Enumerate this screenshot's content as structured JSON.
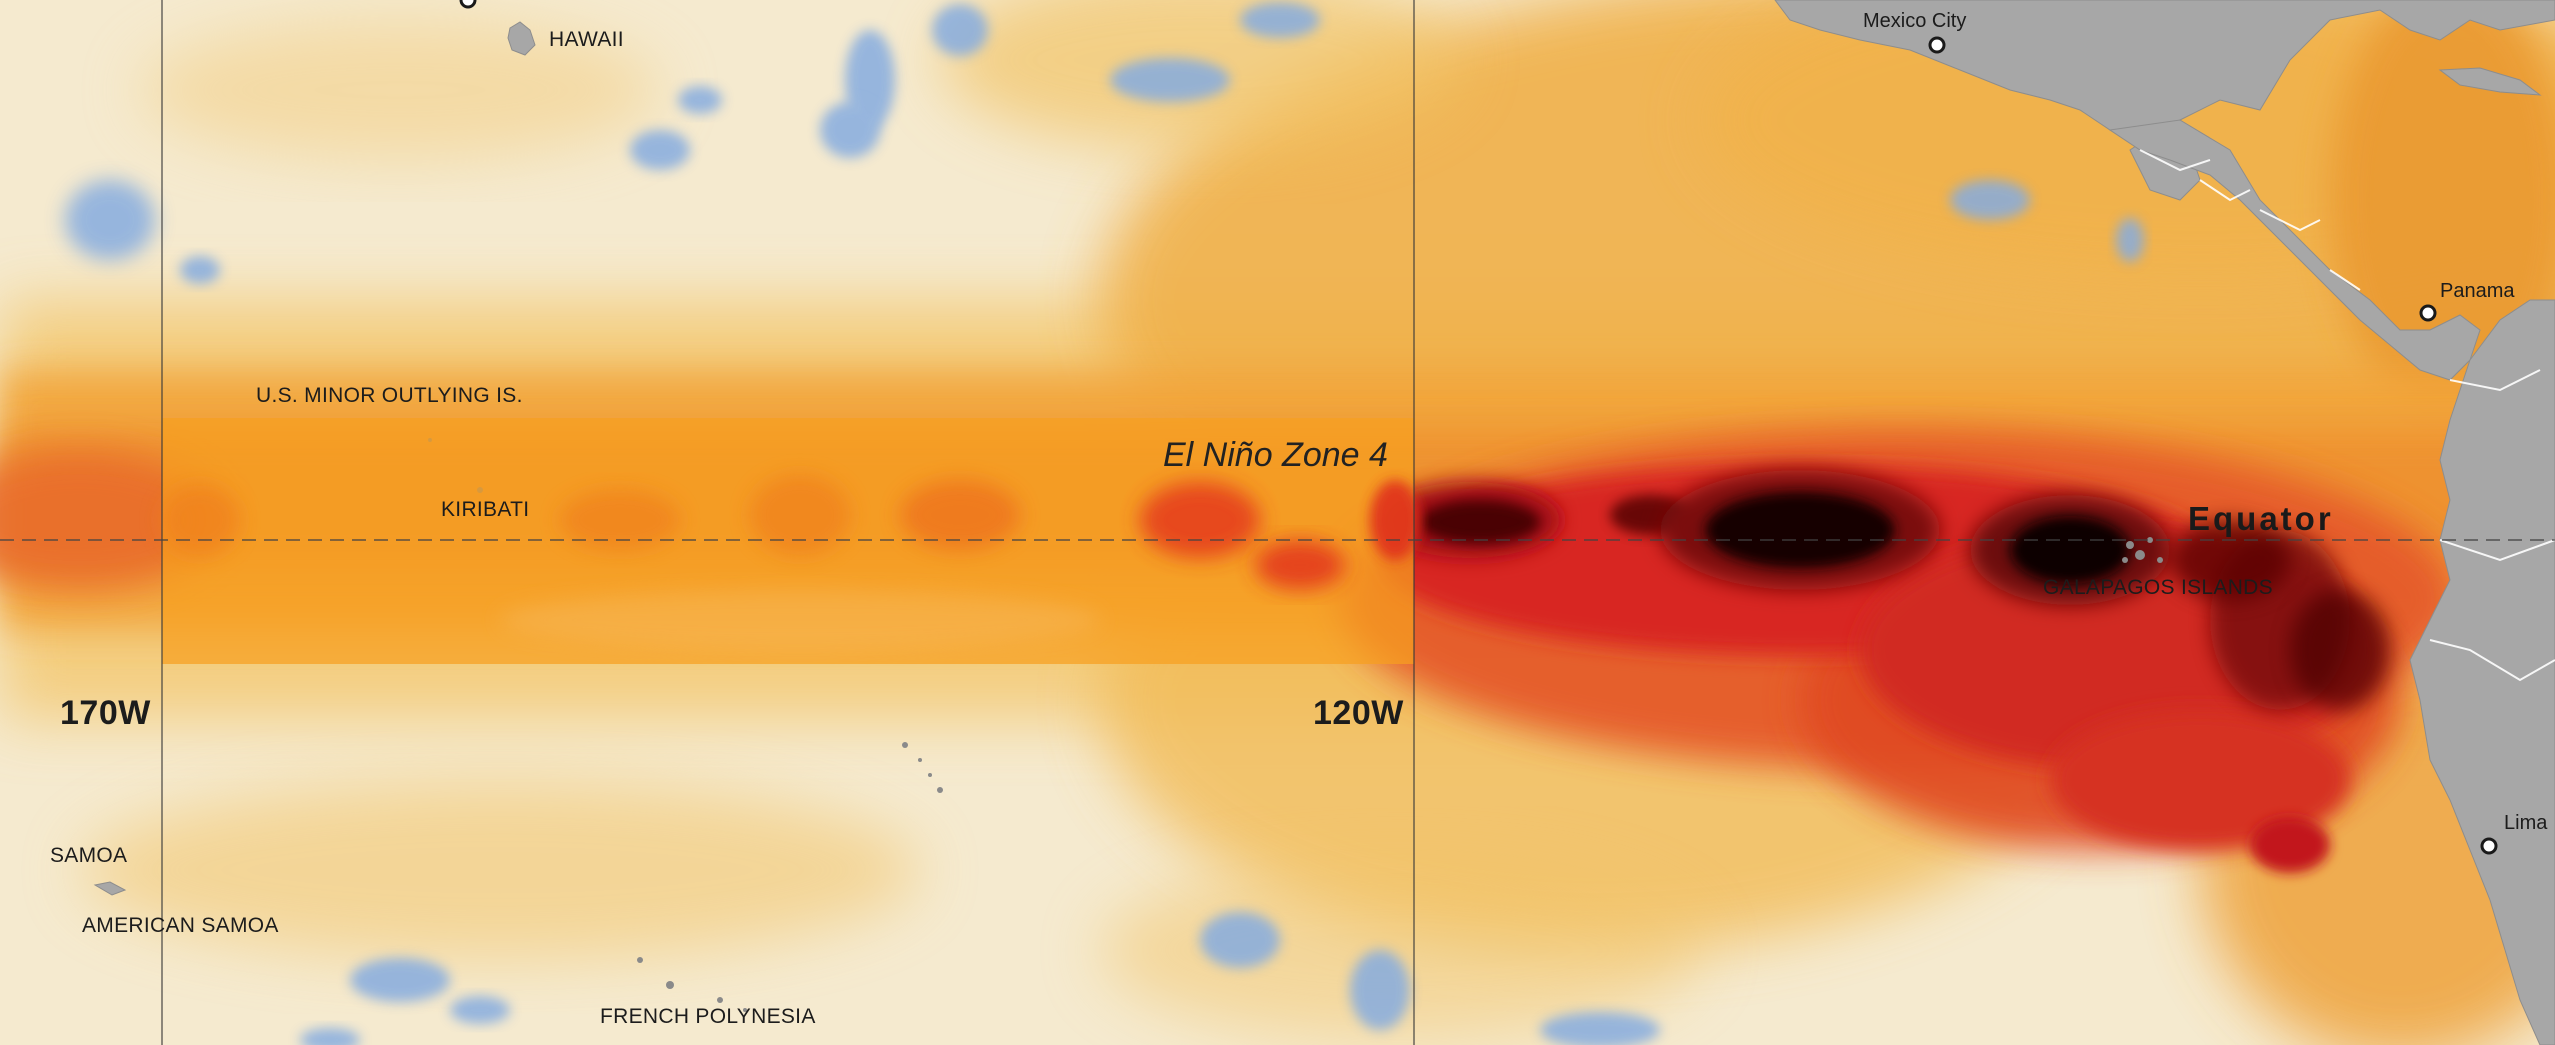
{
  "labels": {
    "hawaii": "HAWAII",
    "us_minor": "U.S. MINOR OUTLYING IS.",
    "kiribati": "KIRIBATI",
    "samoa": "SAMOA",
    "american_samoa": "AMERICAN SAMOA",
    "french_polynesia": "FRENCH POLYNESIA",
    "galapagos": "GALAPAGOS ISLANDS",
    "mexico_city": "Mexico City",
    "panama": "Panama",
    "lima": "Lima",
    "equator": "Equator",
    "zone": "El Niño Zone 4",
    "lon_170w": "170W",
    "lon_120w": "120W"
  },
  "colors": {
    "cool_anomaly": "#7ea7dc",
    "neutral": "#f4ecd6",
    "warm_light": "#f2c25e",
    "warm": "#f0a53a",
    "warm_strong": "#e8612a",
    "hot": "#d41e1e",
    "extreme": "#1a0000",
    "land": "#a6a6a6",
    "border": "#ffffff"
  }
}
